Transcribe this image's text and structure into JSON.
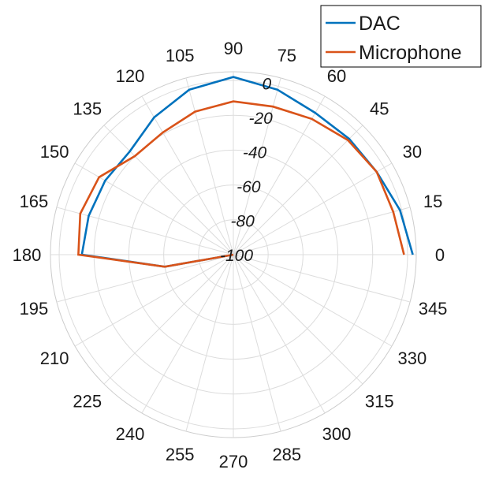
{
  "chart_data": {
    "type": "polar-line",
    "theta_unit": "degrees",
    "theta_ticks": [
      0,
      15,
      30,
      45,
      60,
      75,
      90,
      105,
      120,
      135,
      150,
      165,
      180,
      195,
      210,
      225,
      240,
      255,
      270,
      285,
      300,
      315,
      330,
      345
    ],
    "theta_tick_labels": [
      "0",
      "15",
      "30",
      "45",
      "60",
      "75",
      "90",
      "105",
      "120",
      "135",
      "150",
      "165",
      "180",
      "195",
      "210",
      "225",
      "240",
      "255",
      "270",
      "285",
      "300",
      "315",
      "330",
      "345"
    ],
    "rlim": [
      -100,
      5
    ],
    "r_ticks": [
      0,
      -20,
      -40,
      -60,
      -80,
      -100
    ],
    "r_tick_labels": [
      "0",
      "-20",
      "-40",
      "-60",
      "-80",
      "-100"
    ],
    "grid": true,
    "legend": {
      "placement": "top-right"
    },
    "series": [
      {
        "name": "DAC",
        "color": "#0072BD",
        "theta": [
          0,
          15,
          30,
          45,
          60,
          75,
          90,
          105,
          120,
          135,
          150,
          165,
          180,
          190,
          0
        ],
        "r": [
          3,
          -1,
          -5,
          -6,
          -6,
          -2,
          2,
          -2,
          -9,
          -16,
          -15,
          -14,
          -13,
          -60,
          -100
        ]
      },
      {
        "name": "Microphone",
        "color": "#D95319",
        "theta": [
          0,
          15,
          30,
          45,
          60,
          75,
          90,
          105,
          120,
          135,
          150,
          165,
          180,
          190,
          0
        ],
        "r": [
          -2,
          -5,
          -5,
          -7,
          -10,
          -12,
          -12,
          -15,
          -19,
          -20,
          -11,
          -9,
          -11,
          -60,
          -100
        ]
      }
    ]
  }
}
